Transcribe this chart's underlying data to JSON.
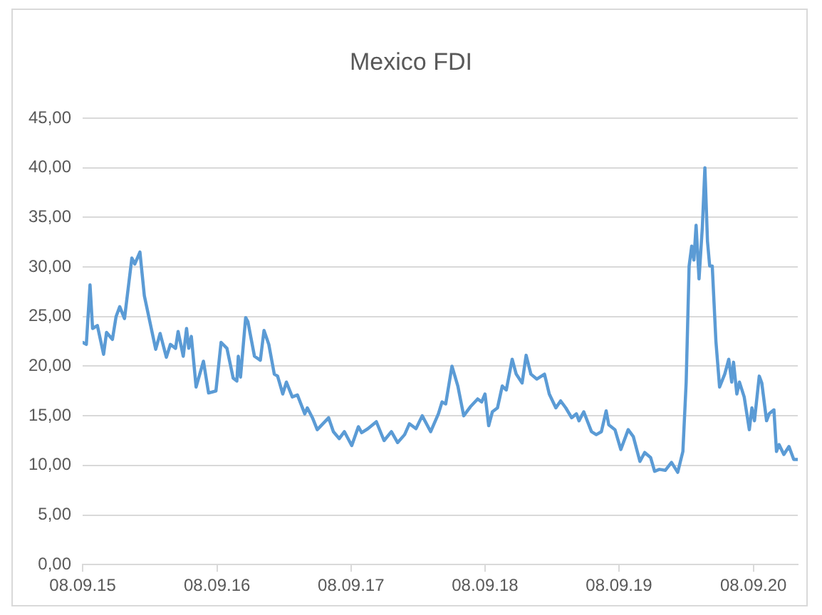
{
  "chart_data": {
    "type": "line",
    "title": "Mexico FDI",
    "x": [
      "2015-09-08",
      "2015-09-18",
      "2015-09-28",
      "2015-10-05",
      "2015-10-18",
      "2015-11-04",
      "2015-11-12",
      "2015-11-28",
      "2015-12-08",
      "2015-12-18",
      "2015-12-31",
      "2016-01-20",
      "2016-01-28",
      "2016-02-11",
      "2016-02-23",
      "2016-03-25",
      "2016-04-06",
      "2016-04-23",
      "2016-05-04",
      "2016-05-18",
      "2016-05-25",
      "2016-06-08",
      "2016-06-17",
      "2016-06-23",
      "2016-06-30",
      "2016-07-13",
      "2016-08-02",
      "2016-08-16",
      "2016-09-05",
      "2016-09-19",
      "2016-10-05",
      "2016-10-22",
      "2016-11-01",
      "2016-11-05",
      "2016-11-11",
      "2016-11-25",
      "2016-12-01",
      "2016-12-19",
      "2017-01-04",
      "2017-01-14",
      "2017-01-27",
      "2017-02-11",
      "2017-02-20",
      "2017-03-06",
      "2017-03-16",
      "2017-04-01",
      "2017-04-15",
      "2017-05-05",
      "2017-05-12",
      "2017-05-26",
      "2017-06-08",
      "2017-06-21",
      "2017-07-09",
      "2017-07-22",
      "2017-08-07",
      "2017-08-21",
      "2017-09-10",
      "2017-09-28",
      "2017-10-07",
      "2017-10-24",
      "2017-11-16",
      "2017-12-07",
      "2017-12-27",
      "2018-01-13",
      "2018-02-01",
      "2018-02-14",
      "2018-03-04",
      "2018-03-21",
      "2018-04-13",
      "2018-05-04",
      "2018-05-14",
      "2018-05-24",
      "2018-06-10",
      "2018-06-26",
      "2018-07-12",
      "2018-07-30",
      "2018-08-19",
      "2018-08-30",
      "2018-09-08",
      "2018-09-18",
      "2018-09-28",
      "2018-10-12",
      "2018-10-25",
      "2018-11-05",
      "2018-11-21",
      "2018-12-02",
      "2018-12-18",
      "2018-12-29",
      "2019-01-11",
      "2019-01-27",
      "2019-02-17",
      "2019-03-02",
      "2019-03-20",
      "2019-04-02",
      "2019-04-16",
      "2019-05-02",
      "2019-05-15",
      "2019-05-22",
      "2019-06-04",
      "2019-06-25",
      "2019-07-08",
      "2019-07-22",
      "2019-08-04",
      "2019-08-11",
      "2019-08-28",
      "2019-09-13",
      "2019-10-03",
      "2019-10-17",
      "2019-11-04",
      "2019-11-17",
      "2019-12-03",
      "2019-12-14",
      "2019-12-27",
      "2020-01-12",
      "2020-01-29",
      "2020-02-15",
      "2020-02-29",
      "2020-03-09",
      "2020-03-17",
      "2020-03-24",
      "2020-03-30",
      "2020-04-05",
      "2020-04-13",
      "2020-04-22",
      "2020-04-29",
      "2020-05-06",
      "2020-05-12",
      "2020-05-19",
      "2020-05-29",
      "2020-06-08",
      "2020-06-22",
      "2020-07-03",
      "2020-07-11",
      "2020-07-16",
      "2020-07-25",
      "2020-08-01",
      "2020-08-14",
      "2020-08-28",
      "2020-09-04",
      "2020-09-11",
      "2020-09-24",
      "2020-10-01",
      "2020-10-14",
      "2020-10-21",
      "2020-11-03",
      "2020-11-10",
      "2020-11-17",
      "2020-11-30",
      "2020-12-14",
      "2020-12-27",
      "2021-01-07"
    ],
    "series": [
      {
        "color": "#5b9bd5",
        "values": [
          22.4,
          22.2,
          28.2,
          23.8,
          24.1,
          21.2,
          23.4,
          22.7,
          25.0,
          26.0,
          24.8,
          30.9,
          30.3,
          31.5,
          27.1,
          21.7,
          23.3,
          20.9,
          22.2,
          21.8,
          23.5,
          21.0,
          23.8,
          21.8,
          23.0,
          17.9,
          20.5,
          17.3,
          17.5,
          22.4,
          21.8,
          18.8,
          18.5,
          21.0,
          18.9,
          24.9,
          24.5,
          21.0,
          20.6,
          23.6,
          22.2,
          19.2,
          19.0,
          17.2,
          18.4,
          16.9,
          17.1,
          15.2,
          15.8,
          14.8,
          13.6,
          14.1,
          14.8,
          13.4,
          12.7,
          13.4,
          12.0,
          13.9,
          13.3,
          13.7,
          14.4,
          12.5,
          13.4,
          12.3,
          13.1,
          14.2,
          13.7,
          15.0,
          13.4,
          15.2,
          16.4,
          16.2,
          20.0,
          18.0,
          15.0,
          15.9,
          16.7,
          16.4,
          17.2,
          14.0,
          15.4,
          15.8,
          18.0,
          17.6,
          20.7,
          19.2,
          18.3,
          21.1,
          19.2,
          18.7,
          19.2,
          17.2,
          15.8,
          16.5,
          15.8,
          14.8,
          15.2,
          14.5,
          15.4,
          13.4,
          13.1,
          13.4,
          15.5,
          14.1,
          13.6,
          11.6,
          13.6,
          12.9,
          10.4,
          11.3,
          10.8,
          9.4,
          9.6,
          9.5,
          10.3,
          9.3,
          11.4,
          18.4,
          30.1,
          32.1,
          30.7,
          34.2,
          28.8,
          34.0,
          40.0,
          32.6,
          30.1,
          30.1,
          22.5,
          17.9,
          19.2,
          20.7,
          18.4,
          20.4,
          17.2,
          18.4,
          16.9,
          13.6,
          15.8,
          14.5,
          19.0,
          18.3,
          14.5,
          15.2,
          15.6,
          11.4,
          12.1,
          11.1,
          11.9,
          10.6,
          10.6
        ]
      }
    ],
    "xlim": [
      "2015-09-08",
      "2021-01-07"
    ],
    "xticks": [
      {
        "value": "2015-09-08",
        "label": "08.09.15"
      },
      {
        "value": "2016-09-08",
        "label": "08.09.16"
      },
      {
        "value": "2017-09-08",
        "label": "08.09.17"
      },
      {
        "value": "2018-09-08",
        "label": "08.09.18"
      },
      {
        "value": "2019-09-08",
        "label": "08.09.19"
      },
      {
        "value": "2020-09-08",
        "label": "08.09.20"
      }
    ],
    "ylim": [
      0,
      45
    ],
    "yticks": [
      {
        "value": 0,
        "label": "0,00"
      },
      {
        "value": 5,
        "label": "5,00"
      },
      {
        "value": 10,
        "label": "10,00"
      },
      {
        "value": 15,
        "label": "15,00"
      },
      {
        "value": 20,
        "label": "20,00"
      },
      {
        "value": 25,
        "label": "25,00"
      },
      {
        "value": 30,
        "label": "30,00"
      },
      {
        "value": 35,
        "label": "35,00"
      },
      {
        "value": 40,
        "label": "40,00"
      },
      {
        "value": 45,
        "label": "45,00"
      }
    ],
    "grid": "y",
    "legend": false,
    "marker": "none",
    "line_style": "solid"
  }
}
